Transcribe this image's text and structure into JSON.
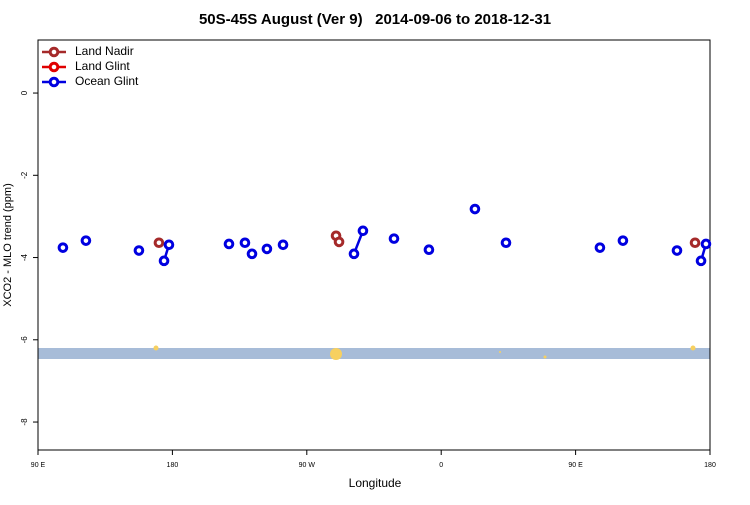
{
  "chart_data": {
    "type": "line",
    "title": "50S-45S August (Ver 9)   2014-09-06 to 2018-12-31",
    "x_label": "Longitude",
    "y_label": "XCO2 - MLO trend (ppm)",
    "xlim": [
      90,
      540
    ],
    "xticks": [
      {
        "value": 90,
        "label": "90 E"
      },
      {
        "value": 180,
        "label": "180"
      },
      {
        "value": 270,
        "label": "90 W"
      },
      {
        "value": 360,
        "label": "0"
      },
      {
        "value": 450,
        "label": "90 E"
      },
      {
        "value": 540,
        "label": "180"
      }
    ],
    "ylim": [
      -8.68,
      1.29
    ],
    "yticks": [
      0,
      -2,
      -4,
      -6,
      -8
    ],
    "legend": "top-left",
    "series": [
      {
        "name": "Land Nadir",
        "color": "#a52a2a",
        "x": [
          171.0,
          null,
          289.6,
          291.6,
          null,
          530.0
        ],
        "values": [
          -3.64,
          null,
          -3.47,
          -3.62,
          null,
          -3.64
        ]
      },
      {
        "name": "Land Glint",
        "color": "#e00000",
        "x": [],
        "values": []
      },
      {
        "name": "Ocean Glint",
        "color": "#0000e0",
        "x": [
          106.7,
          null,
          122.1,
          null,
          157.6,
          null,
          174.4,
          177.7,
          null,
          217.9,
          null,
          228.6,
          null,
          233.3,
          null,
          243.3,
          null,
          254.1,
          null,
          301.6,
          307.6,
          null,
          328.4,
          null,
          351.8,
          null,
          382.6,
          null,
          403.4,
          null,
          466.3,
          null,
          481.7,
          null,
          517.9,
          null,
          534.0,
          537.3
        ],
        "values": [
          -3.76,
          null,
          -3.59,
          null,
          -3.83,
          null,
          -4.08,
          -3.69,
          null,
          -3.67,
          null,
          -3.64,
          null,
          -3.91,
          null,
          -3.79,
          null,
          -3.69,
          null,
          -3.91,
          -3.35,
          null,
          -3.54,
          null,
          -3.81,
          null,
          -2.82,
          null,
          -3.64,
          null,
          -3.76,
          null,
          -3.59,
          null,
          -3.83,
          null,
          -4.08,
          -3.67
        ]
      }
    ]
  }
}
